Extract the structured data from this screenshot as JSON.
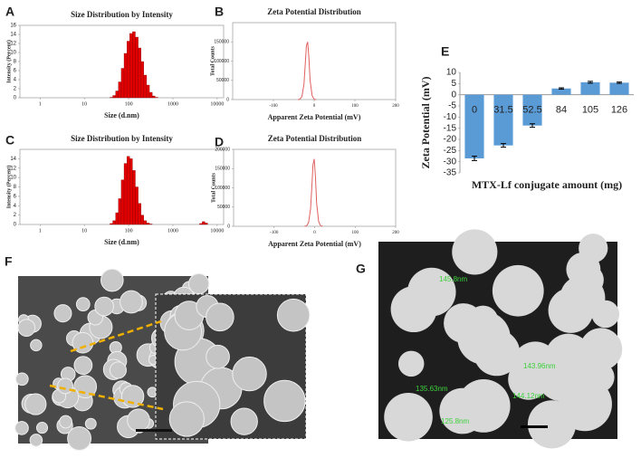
{
  "panel_labels": [
    "A",
    "B",
    "C",
    "D",
    "E",
    "F",
    "G"
  ],
  "chart_data": [
    {
      "type": "histogram",
      "title": "Size Distribution  by Intensity",
      "x_label": "Size (d.nm)",
      "y_label": "Intensity (Percent)",
      "xscale": "log",
      "xlim": [
        0.35,
        14000
      ],
      "xticks": [
        1,
        10,
        100,
        1000,
        10000
      ],
      "ylim": [
        0,
        16
      ],
      "yticks": [
        0,
        2,
        4,
        6,
        8,
        10,
        12,
        14,
        16
      ],
      "color": "#e00000",
      "bins": [
        37.8,
        43.8,
        50.7,
        58.8,
        68.1,
        78.8,
        91.3,
        105.7,
        122.4,
        141.8,
        164.2,
        190.1,
        220.2,
        255.0,
        295.3,
        342.0,
        396.1,
        458.7
      ],
      "values": [
        0.1,
        0.5,
        1.5,
        3.5,
        6.5,
        9.8,
        12.5,
        14.2,
        14.6,
        13.4,
        11,
        8,
        5,
        2.8,
        1.2,
        0.4,
        0.1
      ]
    },
    {
      "type": "line",
      "title": "Zeta Potential Distribution",
      "x_label": "Apparent Zeta Potential (mV)",
      "y_label": "Total Counts",
      "xlim": [
        -200,
        200
      ],
      "xticks": [
        -100,
        0,
        100,
        200
      ],
      "ylim": [
        0,
        200000
      ],
      "yticks": [
        0,
        50000,
        100000,
        150000
      ],
      "color": "#e06060",
      "x": [
        -40,
        -35,
        -30,
        -25,
        -22,
        -19,
        -16,
        -13,
        -10,
        -5,
        0,
        5
      ],
      "values": [
        0,
        1000,
        8000,
        40000,
        90000,
        140000,
        150000,
        110000,
        50000,
        10000,
        1000,
        0
      ]
    },
    {
      "type": "histogram",
      "title": "Size Distribution  by Intensity",
      "x_label": "Size (d.nm)",
      "y_label": "Intensity (Percent)",
      "xscale": "log",
      "xlim": [
        0.35,
        14000
      ],
      "xticks": [
        1,
        10,
        100,
        1000,
        10000
      ],
      "ylim": [
        0,
        16
      ],
      "yticks": [
        0,
        2,
        4,
        6,
        8,
        10,
        12,
        14
      ],
      "color": "#e00000",
      "bins": [
        37.8,
        43.8,
        50.7,
        58.8,
        68.1,
        78.8,
        91.3,
        105.7,
        122.4,
        141.8,
        164.2,
        190.1,
        220.2,
        255.0,
        295.3,
        342.0,
        4000,
        4600,
        5300,
        6100
      ],
      "values": [
        0.2,
        0.8,
        2.5,
        5.5,
        9.5,
        13,
        14.5,
        14,
        11.5,
        8,
        4.5,
        2,
        0.8,
        0.3,
        0.1,
        0,
        0.2,
        0.6,
        0.3
      ]
    },
    {
      "type": "line",
      "title": "Zeta Potential Distribution",
      "x_label": "Apparent Zeta Potential (mV)",
      "y_label": "Total Counts",
      "xlim": [
        -200,
        200
      ],
      "xticks": [
        -100,
        0,
        100,
        200
      ],
      "ylim": [
        0,
        200000
      ],
      "yticks": [
        0,
        50000,
        100000,
        150000,
        200000
      ],
      "color": "#e06060",
      "x": [
        -25,
        -20,
        -15,
        -10,
        -7,
        -4,
        -1,
        2,
        5,
        10,
        15,
        20
      ],
      "values": [
        0,
        1000,
        9000,
        45000,
        100000,
        160000,
        175000,
        130000,
        60000,
        12000,
        1000,
        0
      ]
    },
    {
      "type": "bar",
      "x_label": "MTX-Lf conjugate amount (mg)",
      "y_label": "Zeta Potential (mV)",
      "ylim": [
        -35,
        10
      ],
      "yticks": [
        -35,
        -30,
        -25,
        -20,
        -15,
        -10,
        -5,
        0,
        5,
        10
      ],
      "color": "#5b9bd5",
      "categories": [
        "0",
        "31.5",
        "52.5",
        "84",
        "105",
        "126"
      ],
      "values": [
        -28.5,
        -22.7,
        -13.8,
        2.8,
        5.6,
        5.4
      ],
      "errors": [
        1.0,
        0.8,
        0.8,
        0.3,
        0.4,
        0.3
      ]
    }
  ],
  "images": {
    "G": {
      "annotations": [
        "145.8nm",
        "143.96nm",
        "135.63nm",
        "144.12nm",
        "125.8nm"
      ]
    }
  }
}
